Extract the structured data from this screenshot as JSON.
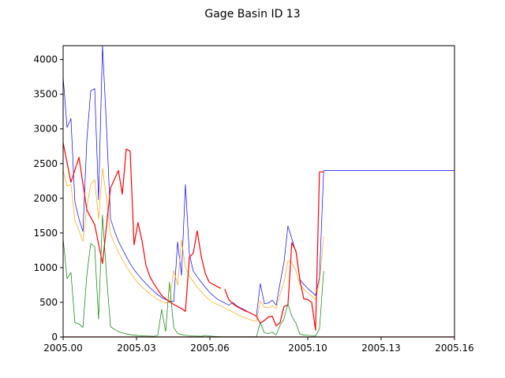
{
  "chart_data": {
    "type": "line",
    "title": "Gage Basin ID 13",
    "xlabel": "",
    "ylabel": "",
    "xlim": [
      2005.0,
      2005.16
    ],
    "ylim": [
      0,
      4200
    ],
    "x_ticks": [
      2005.0,
      2005.03,
      2005.06,
      2005.1,
      2005.13,
      2005.16
    ],
    "x_tick_labels": [
      "2005.00",
      "2005.03",
      "2005.06",
      "2005.10",
      "2005.13",
      "2005.16"
    ],
    "y_ticks": [
      0,
      500,
      1000,
      1500,
      2000,
      2500,
      3000,
      3500,
      4000
    ],
    "y_tick_labels": [
      "0",
      "500",
      "1000",
      "1500",
      "2000",
      "2500",
      "3000",
      "3500",
      "4000"
    ],
    "grid": false,
    "legend": "none",
    "series": [
      {
        "color": "#0000ff",
        "x": [
          2005.0,
          2005.0016,
          2005.0032,
          2005.0048,
          2005.0065,
          2005.0081,
          2005.0097,
          2005.0113,
          2005.0129,
          2005.0145,
          2005.0161,
          2005.0177,
          2005.0194,
          2005.021,
          2005.0226,
          2005.0242,
          2005.0258,
          2005.0274,
          2005.029,
          2005.0306,
          2005.0323,
          2005.0339,
          2005.0355,
          2005.0371,
          2005.0387,
          2005.0403,
          2005.0419,
          2005.0435,
          2005.0452,
          2005.0468,
          2005.0484,
          2005.05,
          2005.0516,
          2005.0532,
          2005.0548,
          2005.0565,
          2005.0581,
          2005.0597,
          2005.0613,
          2005.0629,
          2005.0645,
          2005.0661,
          2005.0677,
          2005.0694,
          2005.071,
          2005.0726,
          2005.0742,
          2005.0758,
          2005.0774,
          2005.079,
          2005.0806,
          2005.0823,
          2005.0839,
          2005.0855,
          2005.0871,
          2005.0887,
          2005.0903,
          2005.0919,
          2005.0935,
          2005.0952,
          2005.0968,
          2005.0984,
          2005.1,
          2005.1016,
          2005.1032,
          2005.1048,
          2005.1065,
          2005.1081,
          2005.1097,
          2005.1113,
          2005.1129,
          2005.1145,
          2005.1161,
          2005.1177,
          2005.1194,
          2005.121,
          2005.1226,
          2005.1242,
          2005.1258,
          2005.1274,
          2005.129,
          2005.1306,
          2005.1323,
          2005.1339,
          2005.1355,
          2005.1371,
          2005.1387,
          2005.1403,
          2005.1419,
          2005.1435,
          2005.1452,
          2005.1468,
          2005.1484,
          2005.15,
          2005.1516,
          2005.1532,
          2005.1548,
          2005.1565,
          2005.1581,
          2005.1597,
          2005.16
        ],
        "y": [
          3750,
          3020,
          3150,
          1950,
          1700,
          1520,
          2850,
          3550,
          3580,
          1980,
          4200,
          3050,
          1700,
          1530,
          1380,
          1270,
          1160,
          1060,
          970,
          900,
          830,
          770,
          710,
          660,
          610,
          570,
          540,
          520,
          510,
          1370,
          890,
          2200,
          1200,
          950,
          870,
          790,
          720,
          650,
          600,
          550,
          520,
          490,
          460,
          500,
          450,
          420,
          390,
          360,
          330,
          300,
          770,
          480,
          490,
          530,
          460,
          780,
          1080,
          1600,
          1420,
          1220,
          830,
          760,
          700,
          650,
          600,
          860,
          2400,
          2400,
          2400,
          2400,
          2400,
          2400,
          2400,
          2400,
          2400,
          2400,
          2400,
          2400,
          2400,
          2400,
          2400,
          2400,
          2400,
          2400,
          2400,
          2400,
          2400,
          2400,
          2400,
          2400,
          2400,
          2400,
          2400,
          2400,
          2400,
          2400,
          2400,
          2400,
          2400,
          2400,
          2400
        ]
      },
      {
        "color": "#ffa500",
        "x": [
          2005.0,
          2005.0016,
          2005.0032,
          2005.0048,
          2005.0065,
          2005.0081,
          2005.0097,
          2005.0113,
          2005.0129,
          2005.0145,
          2005.0161,
          2005.0177,
          2005.0194,
          2005.021,
          2005.0226,
          2005.0242,
          2005.0258,
          2005.0274,
          2005.029,
          2005.0306,
          2005.0323,
          2005.0339,
          2005.0355,
          2005.0371,
          2005.0387,
          2005.0403,
          2005.0419,
          2005.0435,
          2005.0452,
          2005.0468,
          2005.0484,
          2005.05,
          2005.0516,
          2005.0532,
          2005.0548,
          2005.0565,
          2005.0581,
          2005.0597,
          2005.0613,
          2005.0629,
          2005.0645,
          2005.0661,
          2005.0677,
          2005.0694,
          2005.071,
          2005.0726,
          2005.0742,
          2005.0758,
          2005.0774,
          2005.079,
          2005.0806,
          2005.0823,
          2005.0839,
          2005.0855,
          2005.0871,
          2005.0887,
          2005.0903,
          2005.0919,
          2005.0935,
          2005.0952,
          2005.0968,
          2005.0984,
          2005.1,
          2005.1016,
          2005.1032,
          2005.1048,
          2005.1065
        ],
        "y": [
          2400,
          2180,
          2200,
          1680,
          1540,
          1380,
          1880,
          2200,
          2270,
          1700,
          2430,
          2000,
          1480,
          1350,
          1220,
          1120,
          1020,
          930,
          850,
          780,
          720,
          670,
          620,
          580,
          540,
          510,
          490,
          500,
          960,
          750,
          1400,
          1000,
          880,
          800,
          720,
          650,
          590,
          540,
          500,
          470,
          450,
          420,
          390,
          360,
          330,
          300,
          280,
          260,
          240,
          230,
          520,
          430,
          420,
          450,
          410,
          620,
          790,
          1100,
          1080,
          950,
          760,
          690,
          640,
          590,
          540,
          800,
          1450
        ]
      },
      {
        "color": "#ff0000",
        "segments": [
          {
            "x": [
              2005.0,
              2005.0032,
              2005.0065,
              2005.0097,
              2005.0129,
              2005.0161,
              2005.0194,
              2005.0226,
              2005.0242,
              2005.0258,
              2005.0274,
              2005.029,
              2005.0306,
              2005.0323,
              2005.0339,
              2005.0355,
              2005.0371,
              2005.0387,
              2005.0403,
              2005.0419,
              2005.0435,
              2005.0452,
              2005.0468,
              2005.0484,
              2005.05,
              2005.0516,
              2005.0532,
              2005.0548,
              2005.0565,
              2005.0581,
              2005.0597,
              2005.0613,
              2005.0629,
              2005.0645
            ],
            "y": [
              2800,
              2230,
              2590,
              1830,
              1620,
              1060,
              2150,
              2400,
              2060,
              2710,
              2680,
              1330,
              1650,
              1380,
              1030,
              870,
              770,
              680,
              600,
              550,
              510,
              470,
              440,
              410,
              370,
              1150,
              1210,
              1530,
              1160,
              920,
              790,
              760,
              730,
              700
            ]
          },
          {
            "x": [
              2005.0661,
              2005.0677,
              2005.0694,
              2005.071,
              2005.0726,
              2005.0742,
              2005.0758,
              2005.0774,
              2005.079,
              2005.0806,
              2005.0823,
              2005.0839,
              2005.0855,
              2005.0871,
              2005.0887,
              2005.0903,
              2005.0919,
              2005.0935,
              2005.0952,
              2005.0968,
              2005.0984,
              2005.1,
              2005.1016,
              2005.1032,
              2005.1048,
              2005.1065
            ],
            "y": [
              690,
              540,
              480,
              440,
              410,
              380,
              360,
              330,
              300,
              200,
              240,
              290,
              300,
              160,
              210,
              440,
              460,
              1360,
              1240,
              820,
              550,
              540,
              500,
              100,
              2380,
              2380
            ]
          }
        ]
      },
      {
        "color": "#008000",
        "x": [
          2005.0,
          2005.0016,
          2005.0032,
          2005.0048,
          2005.0065,
          2005.0081,
          2005.0097,
          2005.0113,
          2005.0129,
          2005.0145,
          2005.0161,
          2005.0177,
          2005.0194,
          2005.021,
          2005.0226,
          2005.0242,
          2005.0258,
          2005.0274,
          2005.029,
          2005.0306,
          2005.0323,
          2005.0339,
          2005.0355,
          2005.0371,
          2005.0387,
          2005.0403,
          2005.0419,
          2005.0435,
          2005.0452,
          2005.0468,
          2005.0484,
          2005.05,
          2005.0516,
          2005.0532,
          2005.0548,
          2005.0565,
          2005.0581,
          2005.0597,
          2005.0613,
          2005.0629,
          2005.0645,
          2005.0661,
          2005.0677,
          2005.0694,
          2005.071,
          2005.0726,
          2005.0742,
          2005.0758,
          2005.0774,
          2005.079,
          2005.0806,
          2005.0823,
          2005.0839,
          2005.0855,
          2005.0871,
          2005.0887,
          2005.0903,
          2005.0919,
          2005.0935,
          2005.0952,
          2005.0968,
          2005.0984,
          2005.1,
          2005.1016,
          2005.1032,
          2005.1048,
          2005.1065
        ],
        "y": [
          1420,
          840,
          930,
          210,
          190,
          140,
          900,
          1350,
          1300,
          260,
          1760,
          900,
          150,
          110,
          80,
          60,
          45,
          35,
          28,
          22,
          18,
          15,
          12,
          10,
          30,
          400,
          80,
          790,
          140,
          50,
          35,
          25,
          20,
          15,
          12,
          10,
          25,
          15,
          10,
          8,
          5,
          5,
          5,
          5,
          5,
          5,
          5,
          5,
          5,
          5,
          210,
          60,
          50,
          70,
          30,
          170,
          260,
          480,
          300,
          200,
          40,
          30,
          25,
          20,
          15,
          120,
          950
        ]
      },
      {
        "color": "#8b0000",
        "x": [
          2005.0,
          2005.16
        ],
        "y": [
          5,
          5
        ]
      }
    ]
  }
}
